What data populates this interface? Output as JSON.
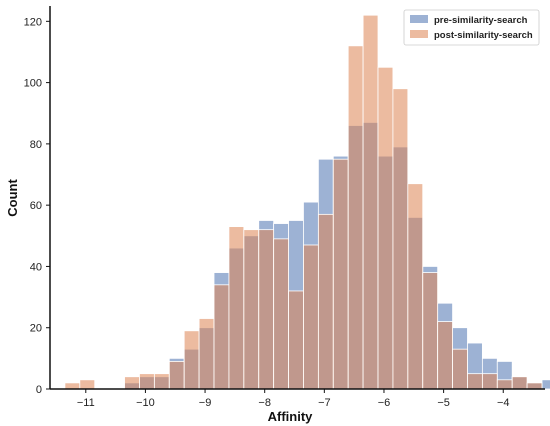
{
  "chart_data": {
    "type": "bar",
    "subtype": "histogram-overlay",
    "xlabel": "Affinity",
    "ylabel": "Count",
    "xlim": [
      -11.6,
      -3.3
    ],
    "ylim": [
      0,
      125
    ],
    "x_ticks": [
      -11,
      -10,
      -9,
      -8,
      -7,
      -6,
      -5,
      -4
    ],
    "x_tick_labels": [
      "−11",
      "−10",
      "−9",
      "−8",
      "−7",
      "−6",
      "−5",
      "−4"
    ],
    "y_ticks": [
      0,
      20,
      40,
      60,
      80,
      100,
      120
    ],
    "y_tick_labels": [
      "0",
      "20",
      "40",
      "60",
      "80",
      "100",
      "120"
    ],
    "bin_start": -11.35,
    "bin_width": 0.25,
    "grid": false,
    "legend": "top-right",
    "series": [
      {
        "name": "pre-similarity-search",
        "color": "#4c72b0",
        "alpha": 0.55,
        "values": [
          0,
          0,
          0,
          0,
          2,
          4,
          4,
          10,
          13,
          20,
          38,
          46,
          50,
          55,
          54,
          55,
          61,
          75,
          76,
          86,
          87,
          76,
          79,
          56,
          40,
          28,
          20,
          15,
          10,
          9,
          4,
          2,
          3
        ]
      },
      {
        "name": "post-similarity-search",
        "color": "#dd8452",
        "alpha": 0.55,
        "values": [
          2,
          3,
          0,
          0,
          4,
          5,
          5,
          9,
          19,
          23,
          34,
          53,
          52,
          52,
          49,
          32,
          47,
          57,
          75,
          112,
          122,
          105,
          98,
          67,
          38,
          22,
          13,
          5,
          5,
          3,
          4,
          2,
          0
        ]
      }
    ]
  }
}
